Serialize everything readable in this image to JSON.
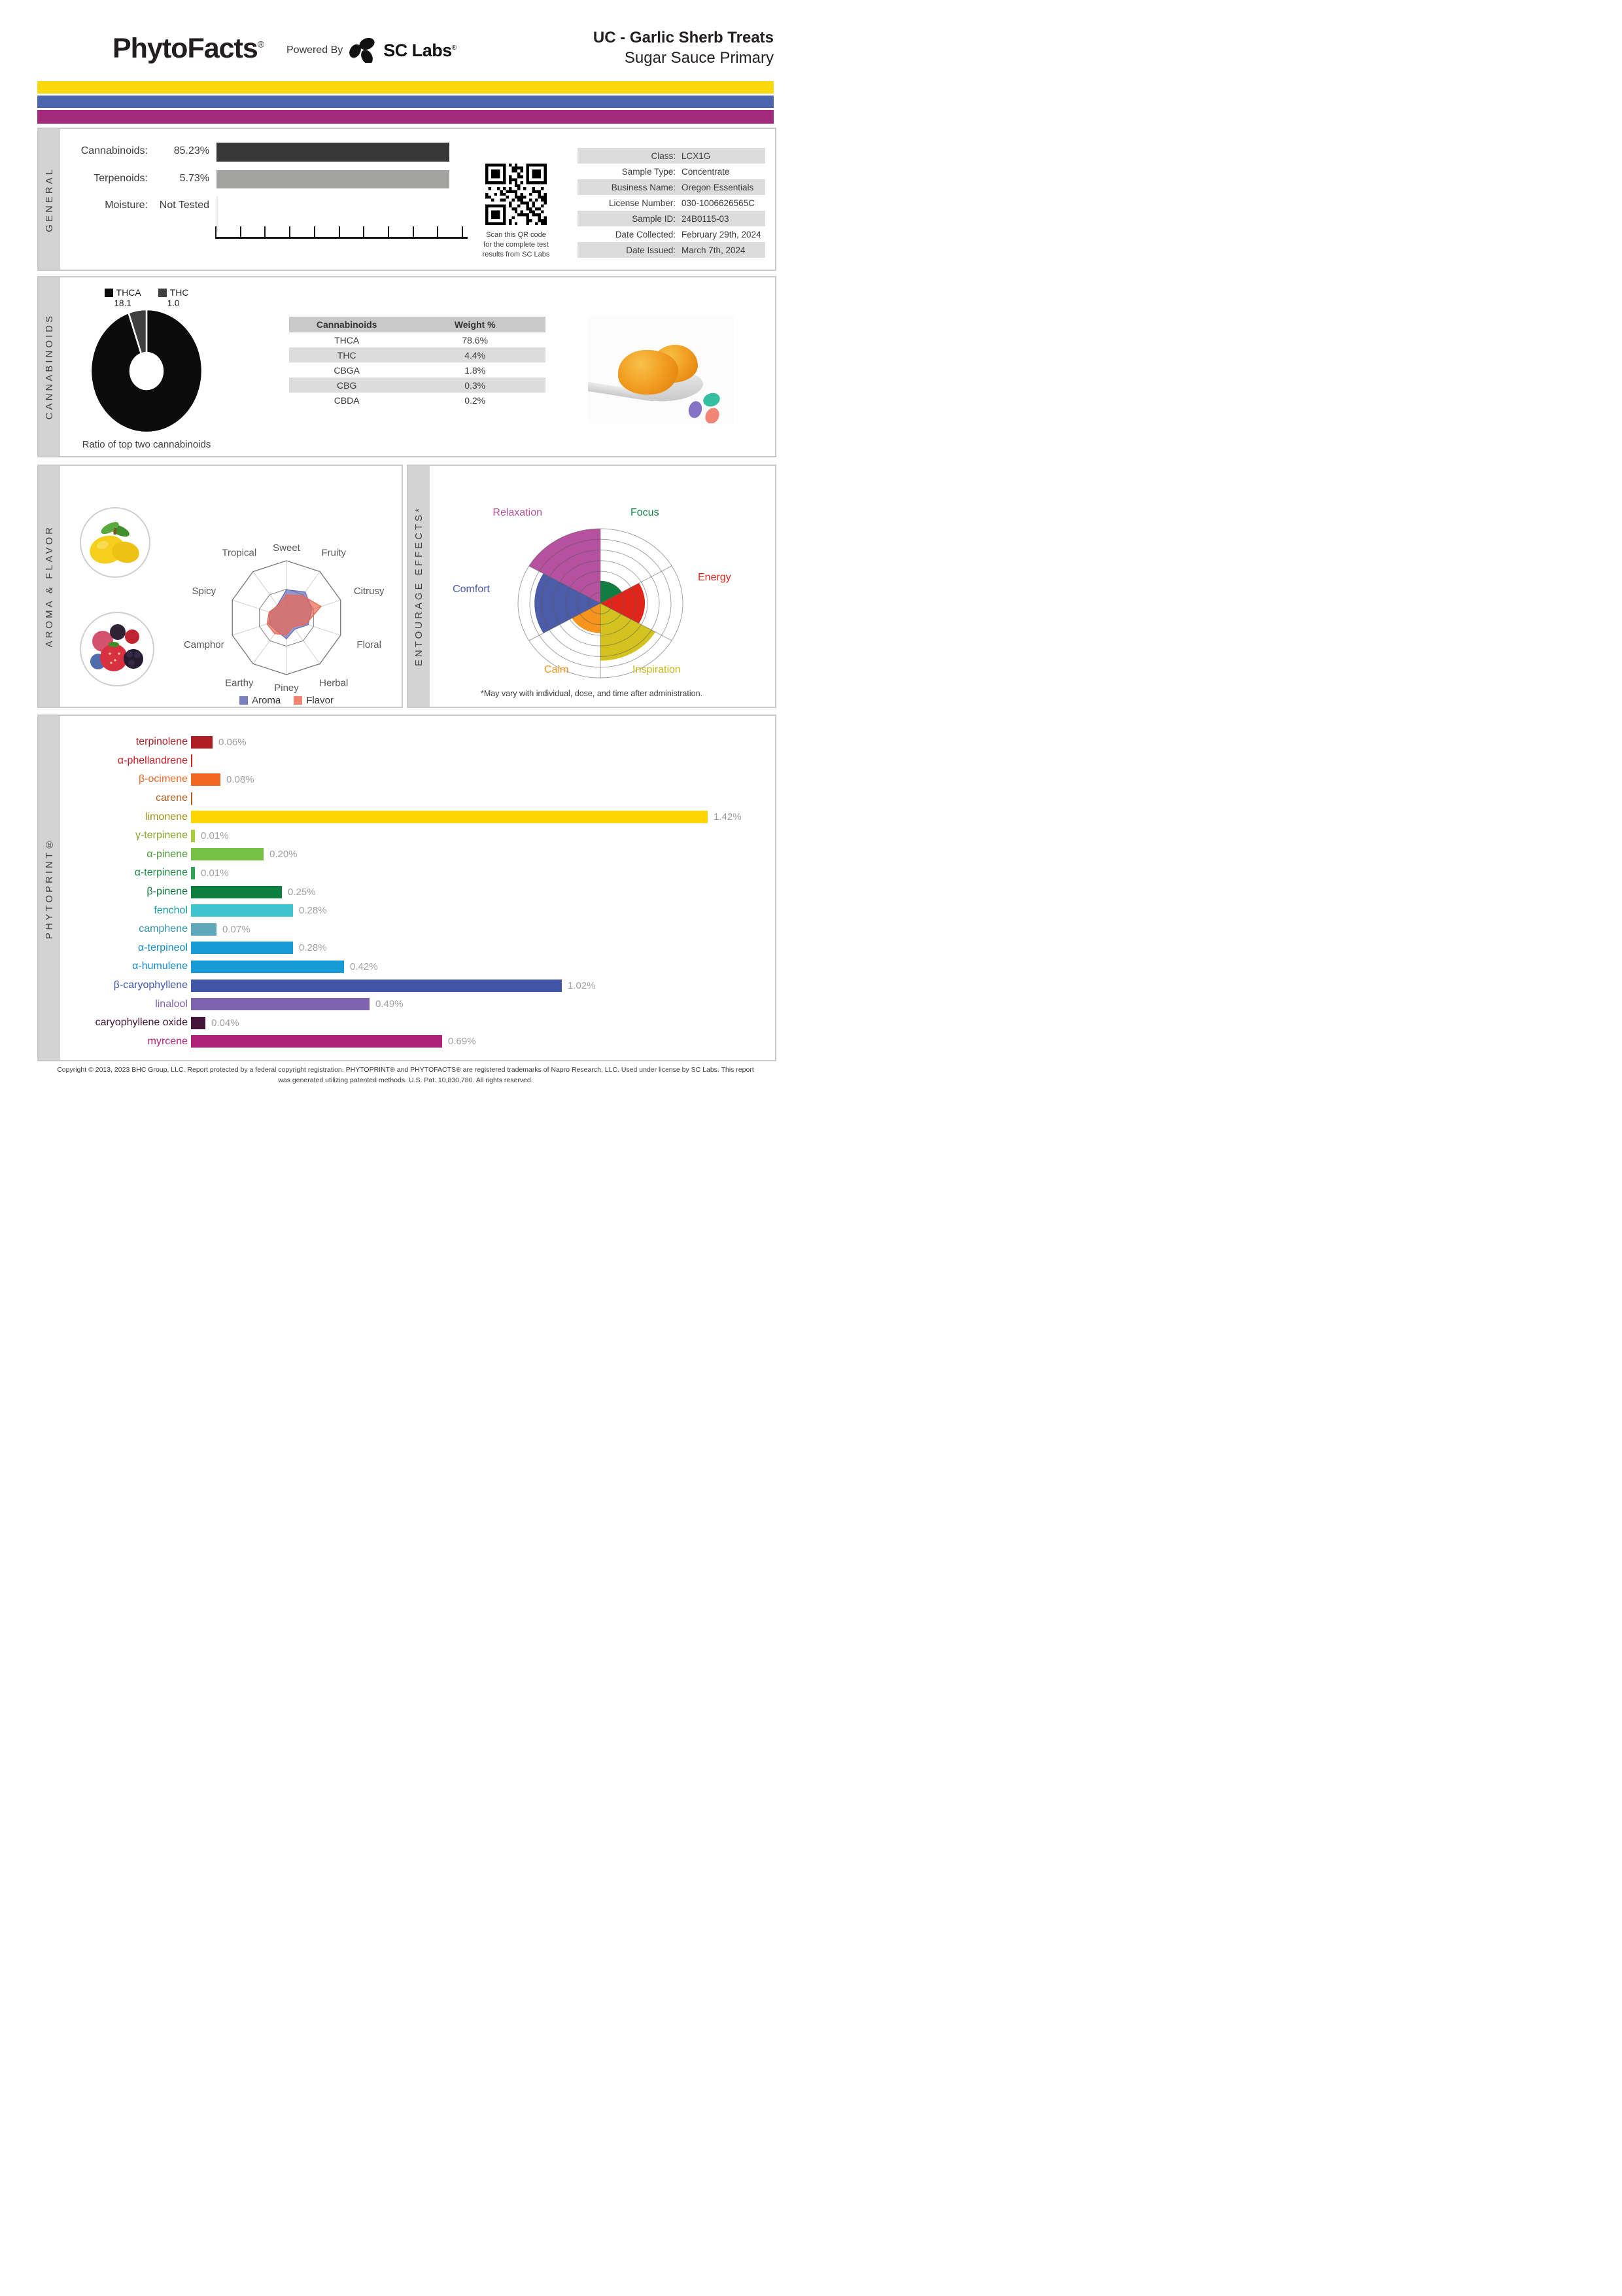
{
  "header": {
    "brand": "PhytoFacts",
    "brand_mark": "®",
    "powered_by": "Powered By",
    "lab_name": "SC Labs",
    "lab_mark": "®",
    "title_line1": "UC - Garlic Sherb Treats",
    "title_line2": "Sugar Sauce Primary",
    "stripe_colors": [
      "#fbd70e",
      "#4c66ae",
      "#a12a7c"
    ]
  },
  "general": {
    "section_label": "GENERAL",
    "metrics": [
      {
        "label": "Cannabinoids:",
        "value": "85.23%"
      },
      {
        "label": "Terpenoids:",
        "value": "5.73%"
      },
      {
        "label": "Moisture:",
        "value": "Not Tested"
      }
    ],
    "qr_caption_lines": [
      "Scan this QR code",
      "for the complete test",
      "results from SC Labs"
    ],
    "info_rows": [
      {
        "label": "Class:",
        "value": "LCX1G"
      },
      {
        "label": "Sample Type:",
        "value": "Concentrate"
      },
      {
        "label": "Business Name:",
        "value": "Oregon Essentials"
      },
      {
        "label": "License Number:",
        "value": "030-1006626565C"
      },
      {
        "label": "Sample ID:",
        "value": "24B0115-03"
      },
      {
        "label": "Date Collected:",
        "value": "February 29th, 2024"
      },
      {
        "label": "Date Issued:",
        "value": "March 7th, 2024"
      }
    ]
  },
  "cannabinoids": {
    "section_label": "CANNABINOIDS",
    "legend": [
      {
        "name": "THCA",
        "value": "18.1",
        "color": "#0b0b0b"
      },
      {
        "name": "THC",
        "value": "1.0",
        "color": "#404040"
      }
    ],
    "donut_caption": "Ratio of top two cannabinoids",
    "table_headers": [
      "Cannabinoids",
      "Weight %"
    ],
    "table_rows": [
      [
        "THCA",
        "78.6%"
      ],
      [
        "THC",
        "4.4%"
      ],
      [
        "CBGA",
        "1.8%"
      ],
      [
        "CBG",
        "0.3%"
      ],
      [
        "CBDA",
        "0.2%"
      ]
    ]
  },
  "aroma_flavor": {
    "section_label": "AROMA & FLAVOR",
    "legend": [
      {
        "label": "Aroma",
        "color": "#7b80c1"
      },
      {
        "label": "Flavor",
        "color": "#f0846e"
      }
    ]
  },
  "entourage": {
    "section_label": "ENTOURAGE EFFECTS*",
    "footnote": "*May vary with individual, dose, and time after administration."
  },
  "phytoprint": {
    "section_label": "PHYTOPRINT®"
  },
  "footer": {
    "line1": "Copyright © 2013, 2023 BHC Group, LLC. Report protected by a federal copyright registration. PHYTOPRINT® and PHYTOFACTS® are registered trademarks of Napro Research, LLC. Used under license by SC Labs. This report",
    "line2": "was generated utilizing patented methods. U.S. Pat. 10,830,780. All rights reserved."
  },
  "chart_data": [
    {
      "id": "general-composition",
      "type": "bar",
      "orientation": "horizontal",
      "categories": [
        "Cannabinoids",
        "Terpenoids",
        "Moisture"
      ],
      "values": [
        85.23,
        5.73,
        null
      ],
      "value_labels": [
        "85.23%",
        "5.73%",
        "Not Tested"
      ],
      "bar_colors": [
        "#383838",
        "#a3a3a1",
        null
      ],
      "note": "bars drawn full width in source report"
    },
    {
      "id": "cannabinoid-ratio-donut",
      "type": "pie",
      "title": "Ratio of top two cannabinoids",
      "categories": [
        "THCA",
        "THC"
      ],
      "values": [
        18.1,
        1.0
      ],
      "colors": [
        "#0b0b0b",
        "#404040"
      ],
      "hole": 0.29
    },
    {
      "id": "aroma-flavor-radar",
      "type": "radar",
      "axes": [
        "Sweet",
        "Fruity",
        "Citrusy",
        "Floral",
        "Herbal",
        "Piney",
        "Earthy",
        "Camphor",
        "Spicy",
        "Tropical"
      ],
      "range": [
        0,
        1
      ],
      "grid_rings": [
        0.5,
        1
      ],
      "series": [
        {
          "name": "Aroma",
          "color": "#6a70b8",
          "values": [
            0.49,
            0.56,
            0.47,
            0.4,
            0.25,
            0.37,
            0.29,
            0.33,
            0.3,
            0.27
          ]
        },
        {
          "name": "Flavor",
          "color": "#e96a55",
          "values": [
            0.4,
            0.48,
            0.64,
            0.36,
            0.2,
            0.3,
            0.35,
            0.36,
            0.32,
            0.26
          ]
        }
      ]
    },
    {
      "id": "entourage-wheel",
      "type": "polar-wedge",
      "rings": 7,
      "max": 1,
      "start_deg_from_top": 0,
      "sector_span_deg": 60,
      "sectors": [
        {
          "label": "Focus",
          "value": 0.3,
          "color": "#0e7f41"
        },
        {
          "label": "Energy",
          "value": 0.54,
          "color": "#e1251b"
        },
        {
          "label": "Inspiration",
          "value": 0.77,
          "color": "#d4c31e",
          "label_color": "#c5b519"
        },
        {
          "label": "Calm",
          "value": 0.4,
          "color": "#f7941d"
        },
        {
          "label": "Comfort",
          "value": 0.8,
          "color": "#4d5ca8"
        },
        {
          "label": "Relaxation",
          "value": 1.0,
          "color": "#b5519f"
        }
      ]
    },
    {
      "id": "phytoprint-terpenes",
      "type": "bar",
      "orientation": "horizontal",
      "xmax_percent": 1.42,
      "value_label_color": "#a0a0a0",
      "terpenes": [
        {
          "name": "terpinolene",
          "value": 0.06,
          "label": "0.06%",
          "color": "#ae1e24",
          "label_color": "#ae1e24"
        },
        {
          "name": "α-phellandrene",
          "value": 0.0,
          "label": "",
          "color": "#d01f27",
          "label_color": "#d01f27"
        },
        {
          "name": "β-ocimene",
          "value": 0.08,
          "label": "0.08%",
          "color": "#f26722",
          "label_color": "#f26722"
        },
        {
          "name": "carene",
          "value": 0.0,
          "label": "",
          "color": "#b05a1e",
          "label_color": "#b05a1e"
        },
        {
          "name": "limonene",
          "value": 1.42,
          "label": "1.42%",
          "color": "#ffd400",
          "label_color": "#9c8e17"
        },
        {
          "name": "γ-terpinene",
          "value": 0.01,
          "label": "0.01%",
          "color": "#a6ce39",
          "label_color": "#85a626"
        },
        {
          "name": "α-pinene",
          "value": 0.2,
          "label": "0.20%",
          "color": "#76c045",
          "label_color": "#4e9a38"
        },
        {
          "name": "α-terpinene",
          "value": 0.01,
          "label": "0.01%",
          "color": "#2fa353",
          "label_color": "#1d8f45"
        },
        {
          "name": "β-pinene",
          "value": 0.25,
          "label": "0.25%",
          "color": "#0c7f3e",
          "label_color": "#0c7f3e"
        },
        {
          "name": "fenchol",
          "value": 0.28,
          "label": "0.28%",
          "color": "#3fc3cc",
          "label_color": "#1a9aa8"
        },
        {
          "name": "camphene",
          "value": 0.07,
          "label": "0.07%",
          "color": "#5fa8ba",
          "label_color": "#2f8fa5"
        },
        {
          "name": "α-terpineol",
          "value": 0.28,
          "label": "0.28%",
          "color": "#169bd7",
          "label_color": "#1187c4"
        },
        {
          "name": "α-humulene",
          "value": 0.42,
          "label": "0.42%",
          "color": "#169bd7",
          "label_color": "#1187c4"
        },
        {
          "name": "β-caryophyllene",
          "value": 1.02,
          "label": "1.02%",
          "color": "#4156a6",
          "label_color": "#4156a6"
        },
        {
          "name": "linalool",
          "value": 0.49,
          "label": "0.49%",
          "color": "#7e64ae",
          "label_color": "#7e64ae"
        },
        {
          "name": "caryophyllene oxide",
          "value": 0.04,
          "label": "0.04%",
          "color": "#431539",
          "label_color": "#431539"
        },
        {
          "name": "myrcene",
          "value": 0.69,
          "label": "0.69%",
          "color": "#b02277",
          "label_color": "#b02277"
        }
      ]
    }
  ]
}
